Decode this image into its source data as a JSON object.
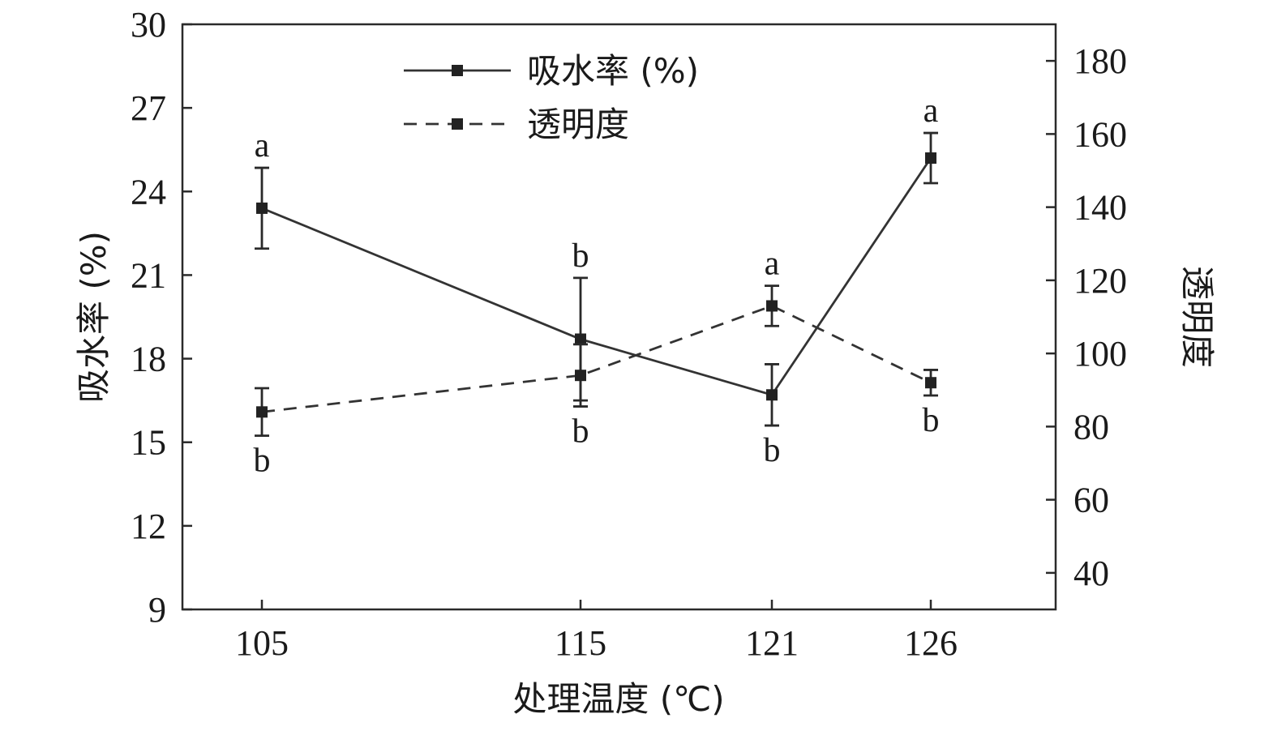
{
  "chart_data": {
    "type": "line",
    "title": "",
    "xlabel": "处理温度 (℃)",
    "ylabel": "吸水率 (%)",
    "y2label": "透明度",
    "categories": [
      "105",
      "115",
      "121",
      "126"
    ],
    "ylim": [
      9,
      30
    ],
    "yticks": [
      9,
      12,
      15,
      18,
      21,
      24,
      27,
      30
    ],
    "y2lim": [
      30,
      190
    ],
    "y2ticks": [
      40,
      60,
      80,
      100,
      120,
      140,
      160,
      180
    ],
    "legend_position": "top-center",
    "grid": false,
    "series": [
      {
        "name": "吸水率 (%)",
        "axis": "left",
        "style": "solid",
        "marker": "square",
        "color": "#333333",
        "values": [
          23.4,
          18.7,
          16.7,
          25.2
        ],
        "errors": [
          1.45,
          2.2,
          1.1,
          0.9
        ],
        "labels": [
          "a",
          "b",
          "b",
          "a"
        ]
      },
      {
        "name": "透明度",
        "axis": "right",
        "style": "dashed",
        "marker": "square",
        "color": "#333333",
        "values": [
          84,
          94,
          113,
          92
        ],
        "errors": [
          6.5,
          8.5,
          5.5,
          3.5
        ],
        "labels": [
          "b",
          "b",
          "a",
          "b"
        ]
      }
    ]
  }
}
